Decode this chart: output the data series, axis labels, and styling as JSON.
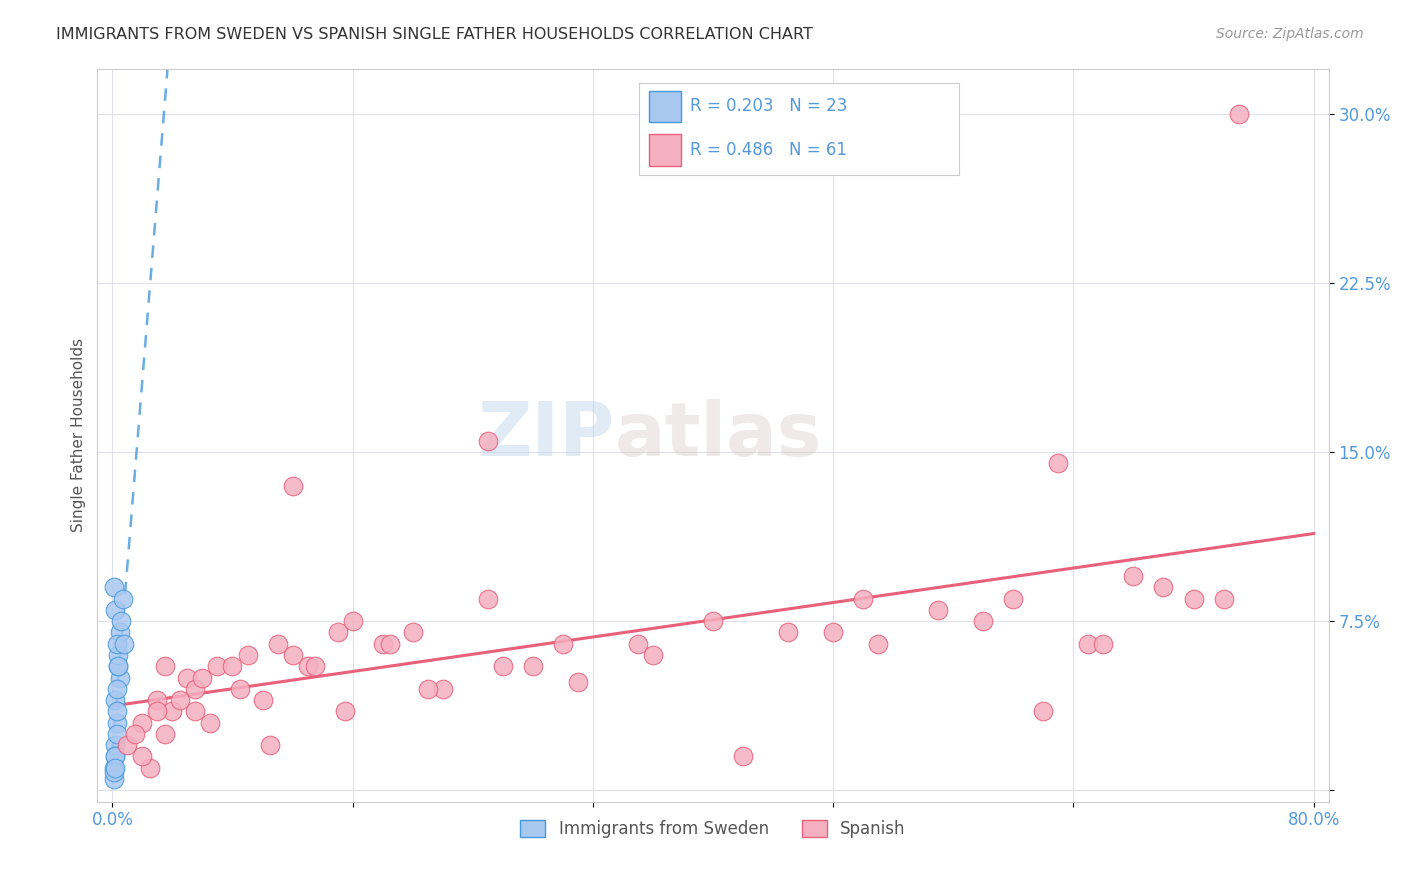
{
  "title": "IMMIGRANTS FROM SWEDEN VS SPANISH SINGLE FATHER HOUSEHOLDS CORRELATION CHART",
  "source": "Source: ZipAtlas.com",
  "ylabel": "Single Father Households",
  "legend_label1": "Immigrants from Sweden",
  "legend_label2": "Spanish",
  "R1": 0.203,
  "N1": 23,
  "R2": 0.486,
  "N2": 61,
  "color_blue": "#a8c8f0",
  "color_blue_line": "#4499dd",
  "color_pink": "#f5b0c0",
  "color_pink_line": "#e8607a",
  "color_text_blue": "#5599dd",
  "watermark_zip": "ZIP",
  "watermark_atlas": "atlas",
  "sweden_x": [
    0.1,
    0.2,
    0.3,
    0.5,
    0.2,
    0.4,
    0.3,
    0.5,
    0.2,
    0.1,
    0.3,
    0.2,
    0.1,
    0.4,
    0.3,
    0.6,
    0.2,
    0.1,
    0.3,
    0.7,
    0.8,
    0.4,
    0.2
  ],
  "sweden_y": [
    1.0,
    2.0,
    3.0,
    5.0,
    4.0,
    5.5,
    3.5,
    7.0,
    8.0,
    9.0,
    2.5,
    1.5,
    0.5,
    6.0,
    4.5,
    7.5,
    1.5,
    0.8,
    6.5,
    8.5,
    6.5,
    5.5,
    1.0
  ],
  "spanish_x": [
    1.0,
    2.0,
    3.0,
    4.0,
    5.0,
    7.0,
    10.0,
    12.0,
    15.0,
    2.5,
    3.5,
    5.5,
    8.0,
    11.0,
    16.0,
    20.0,
    25.0,
    30.0,
    40.0,
    50.0,
    60.0,
    68.0,
    75.0,
    2.0,
    4.5,
    6.0,
    9.0,
    13.0,
    18.0,
    22.0,
    28.0,
    35.0,
    45.0,
    55.0,
    65.0,
    72.0,
    1.5,
    3.0,
    6.5,
    10.5,
    15.5,
    21.0,
    31.0,
    42.0,
    51.0,
    62.0,
    70.0,
    3.5,
    5.5,
    8.5,
    13.5,
    18.5,
    26.0,
    36.0,
    48.0,
    58.0,
    66.0,
    74.0,
    25.0,
    12.0,
    63.0
  ],
  "spanish_y": [
    2.0,
    3.0,
    4.0,
    3.5,
    5.0,
    5.5,
    4.0,
    6.0,
    7.0,
    1.0,
    2.5,
    4.5,
    5.5,
    6.5,
    7.5,
    7.0,
    8.5,
    6.5,
    7.5,
    8.5,
    8.5,
    9.5,
    30.0,
    1.5,
    4.0,
    5.0,
    6.0,
    5.5,
    6.5,
    4.5,
    5.5,
    6.5,
    7.0,
    8.0,
    6.5,
    8.5,
    2.5,
    3.5,
    3.0,
    2.0,
    3.5,
    4.5,
    4.8,
    1.5,
    6.5,
    3.5,
    9.0,
    5.5,
    3.5,
    4.5,
    5.5,
    6.5,
    5.5,
    6.0,
    7.0,
    7.5,
    6.5,
    8.5,
    15.5,
    13.5,
    14.5
  ],
  "xlim_min": 0.0,
  "xlim_max": 80.0,
  "ylim_min": -0.5,
  "ylim_max": 32.0,
  "yticks": [
    0.0,
    7.5,
    15.0,
    22.5,
    30.0
  ],
  "ytick_labels": [
    "",
    "7.5%",
    "15.0%",
    "22.5%",
    "30.0%"
  ],
  "xticks": [
    0.0,
    16.0,
    32.0,
    48.0,
    64.0,
    80.0
  ],
  "xtick_labels": [
    "0.0%",
    "",
    "",
    "",
    "",
    "80.0%"
  ],
  "grid_color": "#e0e0e8",
  "background_color": "#ffffff"
}
